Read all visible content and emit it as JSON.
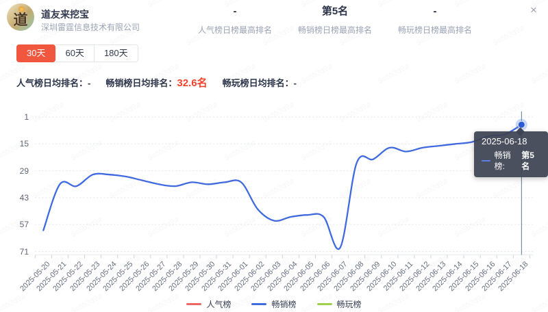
{
  "app": {
    "name": "道友来挖宝",
    "company": "深圳雷霆信息技术有限公司",
    "icon_text": "道"
  },
  "close_label": "×",
  "watermark_text": "9a5b3d9a",
  "header_stats": [
    {
      "value": "-",
      "label": "人气榜日榜最高排名"
    },
    {
      "value": "第5名",
      "label": "畅销榜日榜最高排名"
    },
    {
      "value": "-",
      "label": "畅玩榜日榜最高排名"
    }
  ],
  "tabs": [
    {
      "label": "30天",
      "active": true
    },
    {
      "label": "60天",
      "active": false
    },
    {
      "label": "180天",
      "active": false
    }
  ],
  "daily_averages": [
    {
      "label": "人气榜日均排名：",
      "value": "-",
      "highlight": false
    },
    {
      "label": "畅销榜日均排名：",
      "value": "32.6名",
      "highlight": true
    },
    {
      "label": "畅玩榜日均排名：",
      "value": "-",
      "highlight": false
    }
  ],
  "tooltip": {
    "date": "2025-06-18",
    "entries": [
      {
        "name_label": "畅销榜:",
        "value": "第5名",
        "color": "#5b80e8"
      }
    ]
  },
  "legend": [
    {
      "label": "人气榜",
      "color": "#ee6666"
    },
    {
      "label": "畅销榜",
      "color": "#3f6ae0"
    },
    {
      "label": "畅玩榜",
      "color": "#9ed04e"
    }
  ],
  "colors": {
    "accent_orange": "#f0573e",
    "value_red": "#f4432c",
    "line_blue": "#3f6ae0",
    "pointer_line": "#567a8c",
    "grid_line": "#e2e5ee",
    "tick_line": "#c9d2e4"
  },
  "chart_data": {
    "type": "line",
    "title": "",
    "xlabel": "",
    "ylabel": "",
    "y_inverted": true,
    "ylim": [
      1,
      71
    ],
    "y_ticks": [
      1,
      15,
      29,
      43,
      57,
      71
    ],
    "grid": "dotted-horizontal",
    "legend_position": "bottom-center",
    "x": [
      "2025-05-20",
      "2025-05-21",
      "2025-05-22",
      "2025-05-23",
      "2025-05-24",
      "2025-05-25",
      "2025-05-26",
      "2025-05-27",
      "2025-05-28",
      "2025-05-29",
      "2025-05-30",
      "2025-05-31",
      "2025-06-01",
      "2025-06-02",
      "2025-06-03",
      "2025-06-04",
      "2025-06-05",
      "2025-06-06",
      "2025-06-07",
      "2025-06-08",
      "2025-06-09",
      "2025-06-10",
      "2025-06-11",
      "2025-06-12",
      "2025-06-13",
      "2025-06-14",
      "2025-06-15",
      "2025-06-16",
      "2025-06-17",
      "2025-06-18"
    ],
    "series": [
      {
        "name": "人气榜",
        "color": "#ee6666",
        "values": []
      },
      {
        "name": "畅销榜",
        "color": "#3f6ae0",
        "values": [
          60,
          36,
          37,
          31,
          31,
          32,
          34,
          36,
          37,
          35,
          36,
          35,
          35,
          49,
          55,
          53,
          52,
          53,
          69,
          25,
          23,
          17,
          19,
          17,
          16,
          15,
          14,
          11,
          10,
          5
        ]
      },
      {
        "name": "畅玩榜",
        "color": "#9ed04e",
        "values": []
      }
    ],
    "highlighted_point": {
      "x": "2025-06-18",
      "series": "畅销榜",
      "value": 5
    }
  }
}
